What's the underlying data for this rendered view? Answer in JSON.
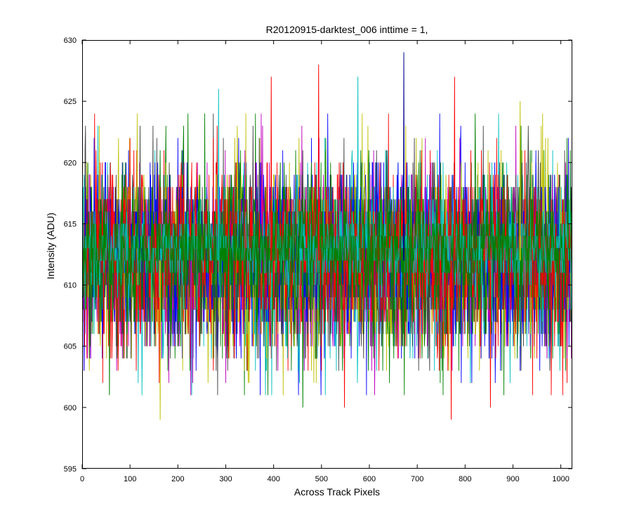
{
  "chart_data": {
    "type": "line",
    "title": "R20120915-darktest_006 inttime = 1,",
    "xlabel": "Across Track Pixels",
    "ylabel": "Intensity (ADU)",
    "xlim": [
      0,
      1024
    ],
    "ylim": [
      595,
      630
    ],
    "xticks": [
      0,
      100,
      200,
      300,
      400,
      500,
      600,
      700,
      800,
      900,
      1000
    ],
    "yticks": [
      595,
      600,
      605,
      610,
      615,
      620,
      625,
      630
    ],
    "xtick_labels": [
      "0",
      "100",
      "200",
      "300",
      "400",
      "500",
      "600",
      "700",
      "800",
      "900",
      "1000"
    ],
    "ytick_labels": [
      "595",
      "600",
      "605",
      "610",
      "615",
      "620",
      "625",
      "630"
    ],
    "grid": false,
    "legend": "none",
    "n_points_per_series": 1024,
    "series_colors": [
      "#0000ff",
      "#008000",
      "#ff0000",
      "#00bfbf",
      "#bf00bf",
      "#bfbf00",
      "#404040"
    ],
    "series": [
      {
        "color": "#0000ff",
        "mean": 612.0,
        "spread": 3.8
      },
      {
        "color": "#008000",
        "mean": 612.0,
        "spread": 3.8
      },
      {
        "color": "#ff0000",
        "mean": 612.0,
        "spread": 3.8
      },
      {
        "color": "#00bfbf",
        "mean": 612.0,
        "spread": 3.8
      },
      {
        "color": "#bf00bf",
        "mean": 612.0,
        "spread": 3.8
      },
      {
        "color": "#bfbf00",
        "mean": 612.0,
        "spread": 3.8
      },
      {
        "color": "#404040",
        "mean": 612.0,
        "spread": 3.8
      },
      {
        "color": "#0000ff",
        "mean": 612.5,
        "spread": 3.2
      },
      {
        "color": "#008000",
        "mean": 612.5,
        "spread": 3.2
      },
      {
        "color": "#ff0000",
        "mean": 612.5,
        "spread": 3.2
      },
      {
        "color": "#00bfbf",
        "mean": 613.0,
        "spread": 1.8
      },
      {
        "color": "#008000",
        "mean": 612.8,
        "spread": 2.0
      }
    ],
    "notable_spikes": [
      {
        "x": 672,
        "y": 629,
        "color": "#00008b"
      },
      {
        "x": 494,
        "y": 628,
        "color": "#ff0000"
      },
      {
        "x": 778,
        "y": 627,
        "color": "#ff0000"
      },
      {
        "x": 395,
        "y": 627,
        "color": "#ff0000"
      },
      {
        "x": 285,
        "y": 626,
        "color": "#00bfbf"
      },
      {
        "x": 576,
        "y": 627,
        "color": "#00bfbf"
      },
      {
        "x": 915,
        "y": 625,
        "color": "#bfbf00"
      },
      {
        "x": 771,
        "y": 599,
        "color": "#ff0000"
      },
      {
        "x": 163,
        "y": 599,
        "color": "#bfbf00"
      },
      {
        "x": 548,
        "y": 600,
        "color": "#ff0000"
      },
      {
        "x": 461,
        "y": 600,
        "color": "#008000"
      },
      {
        "x": 853,
        "y": 600,
        "color": "#ff0000"
      },
      {
        "x": 57,
        "y": 601,
        "color": "#008000"
      },
      {
        "x": 227,
        "y": 601,
        "color": "#bf00bf"
      }
    ]
  }
}
